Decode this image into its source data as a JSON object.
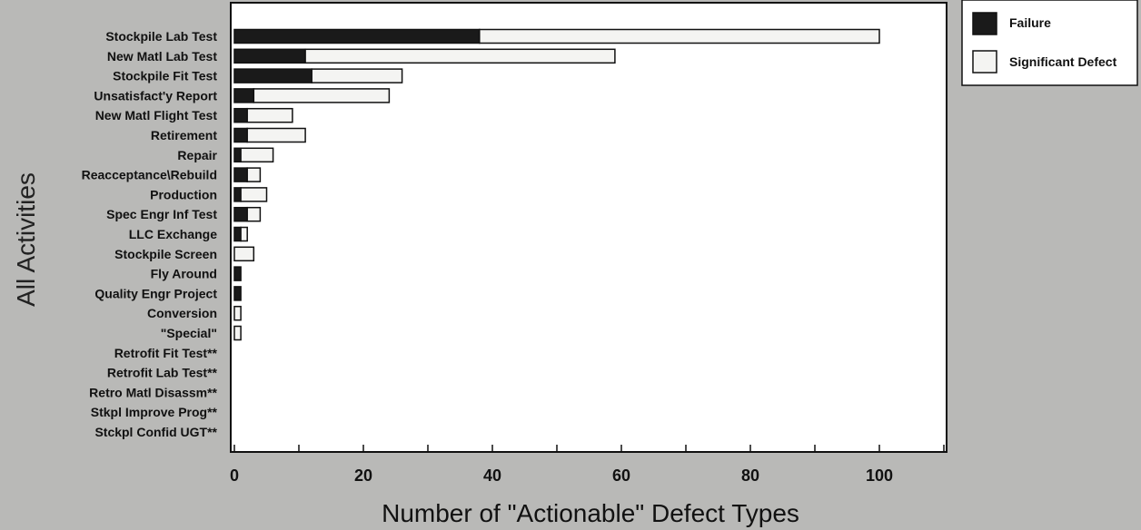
{
  "chart_data": {
    "type": "bar",
    "orientation": "horizontal",
    "stacked": true,
    "categories": [
      "Stockpile Lab Test",
      "New Matl Lab Test",
      "Stockpile Fit Test",
      "Unsatisfact'y Report",
      "New Matl Flight Test",
      "Retirement",
      "Repair",
      "Reacceptance\\Rebuild",
      "Production",
      "Spec Engr Inf Test",
      "LLC Exchange",
      "Stockpile Screen",
      "Fly Around",
      "Quality Engr Project",
      "Conversion",
      "\"Special\"",
      "Retrofit Fit Test**",
      "Retrofit Lab Test**",
      "Retro Matl Disassm**",
      "Stkpl Improve Prog**",
      "Stckpl Confid UGT**"
    ],
    "series": [
      {
        "name": "Failure",
        "color": "#1a1a1a",
        "values": [
          38,
          11,
          12,
          3,
          2,
          2,
          1,
          2,
          1,
          2,
          1,
          0,
          1,
          1,
          0,
          0,
          0,
          0,
          0,
          0,
          0
        ]
      },
      {
        "name": "Significant Defect",
        "color": "#f4f4f2",
        "values": [
          62,
          48,
          14,
          21,
          7,
          9,
          5,
          2,
          4,
          2,
          1,
          3,
          0,
          0,
          1,
          1,
          0,
          0,
          0,
          0,
          0
        ]
      }
    ],
    "xlabel": "Number of \"Actionable\" Defect Types",
    "ylabel": "All Activities",
    "xlim": [
      0,
      110
    ],
    "xticks": [
      0,
      20,
      40,
      60,
      80,
      100
    ],
    "grid": false,
    "legend_position": "right-top"
  }
}
